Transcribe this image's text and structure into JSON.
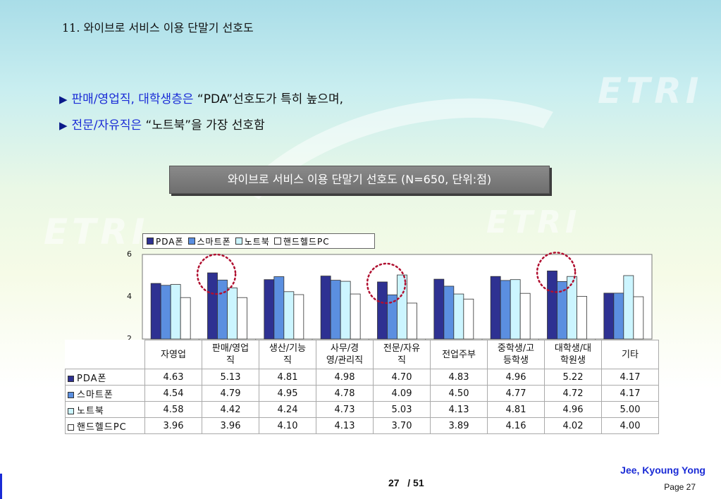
{
  "title": {
    "number": "11.",
    "text": "와이브로 서비스 이용 단말기 선호도"
  },
  "bullets": [
    {
      "marker": "▶",
      "highlight": "판매/영업직, 대학생층은",
      "rest": " “PDA”선호도가 특히 높으며,"
    },
    {
      "marker": "▶",
      "highlight": "전문/자유직은",
      "rest": " “노트북”을 가장 선호함"
    }
  ],
  "watermarks": [
    "ETRI",
    "ETRI",
    "ETRI"
  ],
  "chart_title": "와이브로 서비스 이용 단말기 선호도 (N=650, 단위:점)",
  "colors": {
    "pda": "#2e3192",
    "smartphone": "#5b8fe0",
    "notebook": "#ccf5ff",
    "handheld": "#ffffff",
    "highlight_circle": "#b01030"
  },
  "chart_data": {
    "type": "bar",
    "title": "와이브로 서비스 이용 단말기 선호도 (N=650, 단위:점)",
    "categories": [
      "자영업",
      "판매/영업직",
      "생산/기능직",
      "사무/경영/관리직",
      "전문/자유직",
      "전업주부",
      "중학생/고등학생",
      "대학생/대학원생",
      "기타"
    ],
    "category_lines": [
      [
        "자영업"
      ],
      [
        "판매/영업",
        "직"
      ],
      [
        "생산/기능",
        "직"
      ],
      [
        "사무/경",
        "영/관리직"
      ],
      [
        "전문/자유",
        "직"
      ],
      [
        "전업주부"
      ],
      [
        "중학생/고",
        "등학생"
      ],
      [
        "대학생/대",
        "학원생"
      ],
      [
        "기타"
      ]
    ],
    "series": [
      {
        "name": "PDA폰",
        "values": [
          4.63,
          5.13,
          4.81,
          4.98,
          4.7,
          4.83,
          4.96,
          5.22,
          4.17
        ]
      },
      {
        "name": "스마트폰",
        "values": [
          4.54,
          4.79,
          4.95,
          4.78,
          4.09,
          4.5,
          4.77,
          4.72,
          4.17
        ]
      },
      {
        "name": "노트북",
        "values": [
          4.58,
          4.42,
          4.24,
          4.73,
          5.03,
          4.13,
          4.81,
          4.96,
          5.0
        ]
      },
      {
        "name": "핸드헬드PC",
        "values": [
          3.96,
          3.96,
          4.1,
          4.13,
          3.7,
          3.89,
          4.16,
          4.02,
          4.0
        ]
      }
    ],
    "value_labels": [
      [
        "4.63",
        "5.13",
        "4.81",
        "4.98",
        "4.70",
        "4.83",
        "4.96",
        "5.22",
        "4.17"
      ],
      [
        "4.54",
        "4.79",
        "4.95",
        "4.78",
        "4.09",
        "4.50",
        "4.77",
        "4.72",
        "4.17"
      ],
      [
        "4.58",
        "4.42",
        "4.24",
        "4.73",
        "5.03",
        "4.13",
        "4.81",
        "4.96",
        "5.00"
      ],
      [
        "3.96",
        "3.96",
        "4.10",
        "4.13",
        "3.70",
        "3.89",
        "4.16",
        "4.02",
        "4.00"
      ]
    ],
    "ylim": [
      2,
      6
    ],
    "yticks": [
      "6",
      "4",
      "2"
    ],
    "grid": false,
    "legend_position": "top-left",
    "highlighted_categories": [
      "판매/영업직",
      "전문/자유직",
      "대학생/대학원생"
    ]
  },
  "footer": {
    "author": "Jee, Kyoung Yong",
    "page_label": "Page 27",
    "page_current": "27",
    "page_total": "/ 51"
  }
}
